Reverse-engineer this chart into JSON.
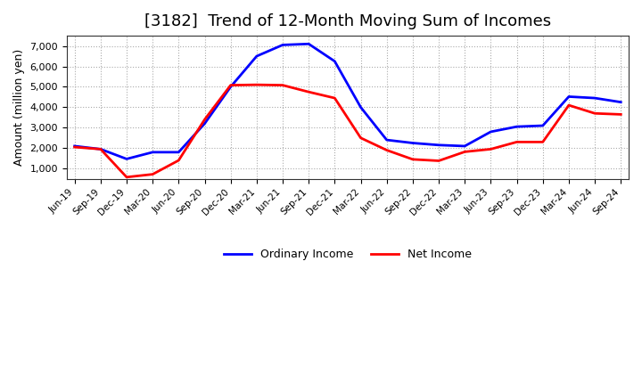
{
  "title": "[3182]  Trend of 12-Month Moving Sum of Incomes",
  "ylabel": "Amount (million yen)",
  "x_labels": [
    "Jun-19",
    "Sep-19",
    "Dec-19",
    "Mar-20",
    "Jun-20",
    "Sep-20",
    "Dec-20",
    "Mar-21",
    "Jun-21",
    "Sep-21",
    "Dec-21",
    "Mar-22",
    "Jun-22",
    "Sep-22",
    "Dec-22",
    "Mar-23",
    "Jun-23",
    "Sep-23",
    "Dec-23",
    "Mar-24",
    "Jun-24",
    "Sep-24"
  ],
  "ordinary_income": [
    2100,
    1950,
    1470,
    1800,
    1800,
    3200,
    5000,
    6500,
    7050,
    7100,
    6250,
    4000,
    2400,
    2250,
    2150,
    2100,
    2800,
    3050,
    3100,
    4520,
    4450,
    4250
  ],
  "net_income": [
    2050,
    1950,
    580,
    720,
    1400,
    3400,
    5080,
    5100,
    5080,
    4750,
    4450,
    2500,
    1900,
    1450,
    1380,
    1820,
    1950,
    2300,
    2300,
    4100,
    3700,
    3650
  ],
  "ordinary_color": "#0000FF",
  "net_color": "#FF0000",
  "ylim": [
    500,
    7500
  ],
  "yticks": [
    1000,
    2000,
    3000,
    4000,
    5000,
    6000,
    7000
  ],
  "background_color": "#FFFFFF",
  "grid_color": "#AAAAAA",
  "title_fontsize": 13,
  "title_fontweight": "normal",
  "legend_labels": [
    "Ordinary Income",
    "Net Income"
  ]
}
